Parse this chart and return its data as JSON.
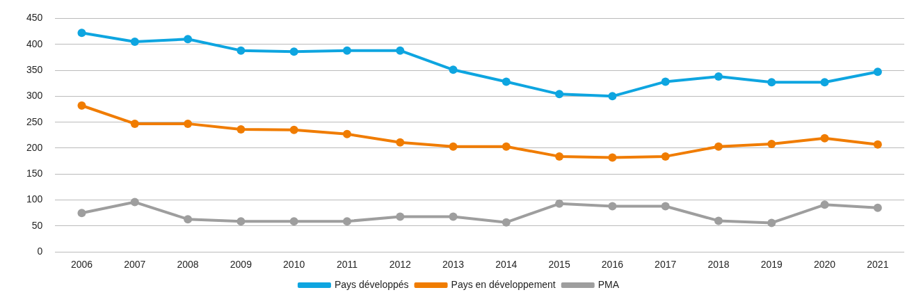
{
  "chart_data": {
    "type": "line",
    "categories": [
      "2006",
      "2007",
      "2008",
      "2009",
      "2010",
      "2011",
      "2012",
      "2013",
      "2014",
      "2015",
      "2016",
      "2017",
      "2018",
      "2019",
      "2020",
      "2021"
    ],
    "series": [
      {
        "name": "Pays développés",
        "color": "#0ea5e0",
        "values": [
          422,
          405,
          410,
          388,
          386,
          388,
          388,
          351,
          328,
          304,
          300,
          328,
          338,
          327,
          327,
          347
        ]
      },
      {
        "name": "Pays en développement",
        "color": "#f07c00",
        "values": [
          282,
          247,
          247,
          236,
          235,
          227,
          211,
          203,
          203,
          184,
          182,
          184,
          203,
          208,
          219,
          207
        ]
      },
      {
        "name": "PMA",
        "color": "#9e9e9e",
        "values": [
          75,
          96,
          63,
          59,
          59,
          59,
          68,
          68,
          57,
          93,
          88,
          88,
          60,
          56,
          91,
          85
        ]
      }
    ],
    "ylim": [
      0,
      450
    ],
    "yticks": [
      0,
      50,
      100,
      150,
      200,
      250,
      300,
      350,
      400,
      450
    ],
    "grid": "y",
    "legend": "bottom",
    "marker": "circle",
    "line_style": "solid"
  }
}
